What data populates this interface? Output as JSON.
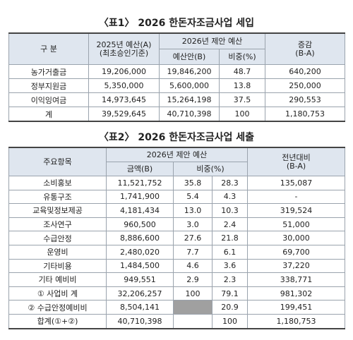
{
  "table1": {
    "title": "〈표1〉 2026 한돈자조금사업 세입",
    "header": {
      "item": "구 분",
      "prev": [
        "2025년 예산(A)",
        "(최초승인기준)"
      ],
      "proposal": "2026년 제안 예산",
      "budget": "예산안(B)",
      "share": "비중(%)",
      "change": [
        "증감",
        "(B-A)"
      ]
    },
    "rows": [
      [
        "농가거출금",
        "19,206,000",
        "19,846,200",
        "48.7",
        "640,200"
      ],
      [
        "정부지원금",
        "5,350,000",
        "5,600,000",
        "13.8",
        "250,000"
      ],
      [
        "이익잉여금",
        "14,973,645",
        "15,264,198",
        "37.5",
        "290,553"
      ],
      [
        "계",
        "39,529,645",
        "40,710,398",
        "100",
        "1,180,753"
      ]
    ]
  },
  "table2": {
    "title": "〈표2〉 2026 한돈자조금사업 세출",
    "header": {
      "item": "주요항목",
      "proposal": "2026년 제안 예산",
      "amount": "금액(B)",
      "share": "비중(%)",
      "change": [
        "전년대비",
        "(B-A)"
      ]
    },
    "rows": [
      [
        "소비홍보",
        "11,521,752",
        "35.8",
        "28.3",
        "135,087"
      ],
      [
        "유통구조",
        "1,741,900",
        "5.4",
        "4.3",
        "-"
      ],
      [
        "교육및정보제공",
        "4,181,434",
        "13.0",
        "10.3",
        "319,524"
      ],
      [
        "조사연구",
        "960,500",
        "3.0",
        "2.4",
        "51,000"
      ],
      [
        "수급안정",
        "8,886,600",
        "27.6",
        "21.8",
        "30,000"
      ],
      [
        "운영비",
        "2,480,020",
        "7.7",
        "6.1",
        "69,700"
      ],
      [
        "기타비용",
        "1,484,500",
        "4.6",
        "3.6",
        "37,220"
      ],
      [
        "기타 예비비",
        "949,551",
        "2.9",
        "2.3",
        "338,771"
      ],
      [
        "① 사업비 계",
        "32,206,257",
        "100",
        "79.1",
        "981,302"
      ],
      [
        "② 수급안정예비비",
        "8,504,141",
        null,
        "20.9",
        "199,451"
      ],
      [
        "합계(①+②)",
        "40,710,398",
        null,
        "100",
        "1,180,753"
      ]
    ]
  }
}
